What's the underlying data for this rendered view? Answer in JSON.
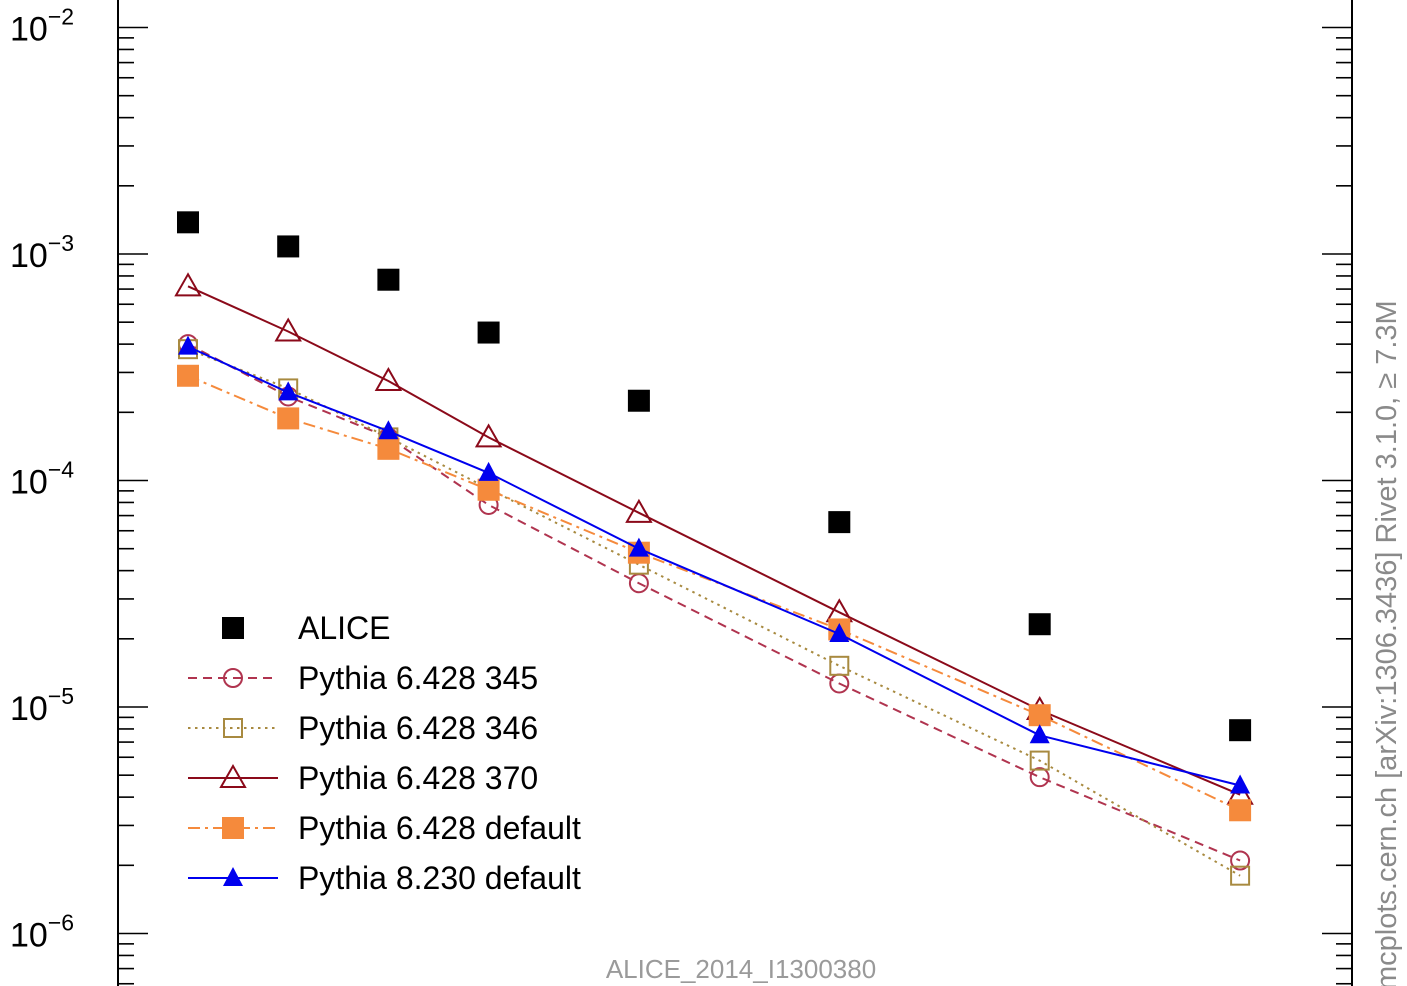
{
  "chart_data": {
    "type": "scatter",
    "title": "",
    "xlabel": "",
    "ylabel": "",
    "y_scale": "log",
    "ylim": [
      6e-07,
      0.011
    ],
    "x": [
      1,
      2,
      3,
      4,
      5.5,
      7.5,
      9.5,
      11.5
    ],
    "y_tick_labels": [
      {
        "value": 0.01,
        "base": "10",
        "exp": "−2"
      },
      {
        "value": 0.001,
        "base": "10",
        "exp": "−3"
      },
      {
        "value": 0.0001,
        "base": "10",
        "exp": "−4"
      },
      {
        "value": 1e-05,
        "base": "10",
        "exp": "−5"
      },
      {
        "value": 1e-06,
        "base": "10",
        "exp": "−6"
      }
    ],
    "series": [
      {
        "name": "ALICE",
        "color": "#000000",
        "marker": "square-filled",
        "line": "none",
        "values": [
          0.00138,
          0.00108,
          0.00077,
          0.00045,
          0.000225,
          6.55e-05,
          2.32e-05,
          7.9e-06
        ]
      },
      {
        "name": "Pythia 6.428 345",
        "color": "#b0344f",
        "marker": "circle-open",
        "line": "dashed",
        "values": [
          0.0004,
          0.000235,
          0.000155,
          7.8e-05,
          3.52e-05,
          1.27e-05,
          4.9e-06,
          2.1e-06
        ]
      },
      {
        "name": "Pythia 6.428 346",
        "color": "#a88a40",
        "marker": "square-open",
        "line": "dotted",
        "values": [
          0.00038,
          0.000255,
          0.000155,
          9.2e-05,
          4.25e-05,
          1.52e-05,
          5.8e-06,
          1.8e-06
        ]
      },
      {
        "name": "Pythia 6.428 370",
        "color": "#8b0a1a",
        "marker": "triangle-open",
        "line": "solid",
        "values": [
          0.00072,
          0.000455,
          0.000275,
          0.000155,
          7.2e-05,
          2.62e-05,
          9.7e-06,
          4.1e-06
        ]
      },
      {
        "name": "Pythia 6.428 default",
        "color": "#f58a3c",
        "marker": "square-filled",
        "line": "dashdot",
        "values": [
          0.00029,
          0.000188,
          0.000138,
          9.1e-05,
          4.8e-05,
          2.2e-05,
          9.2e-06,
          3.5e-06
        ]
      },
      {
        "name": "Pythia 8.230 default",
        "color": "#0000ee",
        "marker": "triangle-filled",
        "line": "solid",
        "values": [
          0.00039,
          0.000245,
          0.000165,
          0.000108,
          5e-05,
          2.1e-05,
          7.5e-06,
          4.5e-06
        ]
      }
    ],
    "legend_position": "bottom-left",
    "grid": false,
    "footer": "ALICE_2014_I1300380",
    "side_label": "mcplots.cern.ch [arXiv:1306.3436]  Rivet 3.1.0, ≥ 7.3M"
  }
}
